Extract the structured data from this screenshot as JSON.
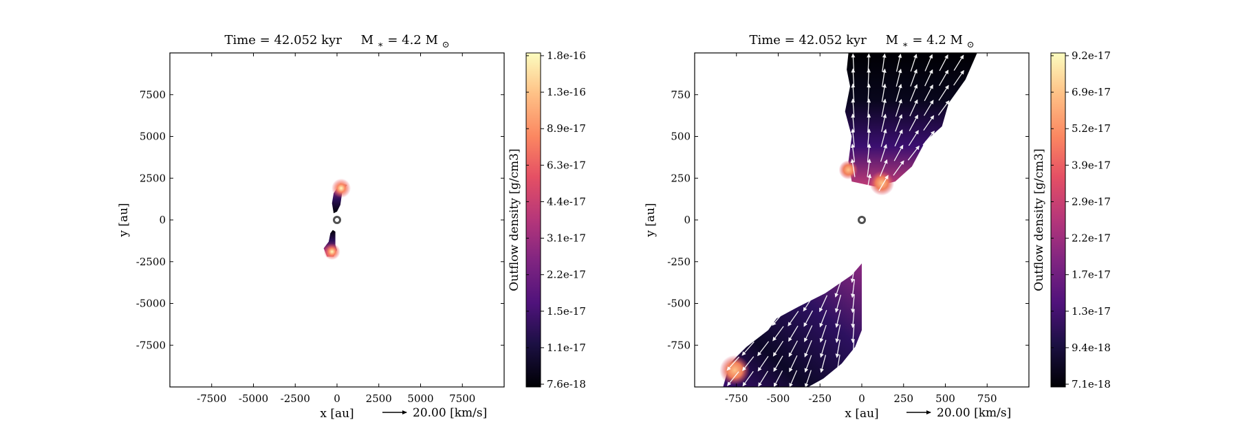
{
  "figure": {
    "panels": [
      {
        "title": "Time = 42.052 kyr    M$_*$ = 4.2 M$_\\odot$",
        "title_parts": {
          "time": "Time = 42.052 kyr",
          "mass_prefix": "M",
          "mass_sub": "∗",
          "mass_value": " = 4.2 M",
          "mass_unit_sub": "⊙"
        }
      },
      {
        "title": "Time = 42.052 kyr    M$_*$ = 4.2 M$_\\odot$",
        "title_parts": {
          "time": "Time = 42.052 kyr",
          "mass_prefix": "M",
          "mass_sub": "∗",
          "mass_value": " = 4.2 M",
          "mass_unit_sub": "⊙"
        }
      }
    ]
  },
  "chart_data": [
    {
      "type": "heatmap",
      "title": "Time = 42.052 kyr    M* = 4.2 M⊙",
      "xlabel": "x [au]",
      "ylabel": "y [au]",
      "xlim": [
        -10000,
        10000
      ],
      "ylim": [
        -10000,
        10000
      ],
      "x_ticks": [
        -7500,
        -5000,
        -2500,
        0,
        2500,
        5000,
        7500
      ],
      "x_ticklabels": [
        "-7500",
        "-5000",
        "-2500",
        "0",
        "2500",
        "5000",
        "7500"
      ],
      "y_ticks": [
        7500,
        5000,
        2500,
        0,
        -2500,
        -5000,
        -7500
      ],
      "y_ticklabels": [
        "7500",
        "5000",
        "2500",
        "0",
        "-2500",
        "-5000",
        "-7500"
      ],
      "grid": false,
      "quiver_key": {
        "label": "20.00 [km/s]"
      },
      "colorbar": {
        "label": "Outflow density [g/cm3]",
        "colormap": "magma",
        "tick_labels": [
          "1.8e-16",
          "1.3e-16",
          "8.9e-17",
          "6.3e-17",
          "4.4e-17",
          "3.1e-17",
          "2.2e-17",
          "1.5e-17",
          "1.1e-17",
          "7.6e-18"
        ],
        "range": [
          7.6e-18,
          1.8e-16
        ]
      },
      "star_marker": {
        "x": 0,
        "y": 0
      },
      "regions": [
        {
          "name": "upper-lobe",
          "polygon": [
            [
              -200,
              400
            ],
            [
              0,
              500
            ],
            [
              200,
              900
            ],
            [
              300,
              1600
            ],
            [
              600,
              2100
            ],
            [
              200,
              2200
            ],
            [
              -200,
              1600
            ],
            [
              -300,
              1000
            ]
          ]
        },
        {
          "name": "lower-lobe",
          "polygon": [
            [
              -250,
              -600
            ],
            [
              -100,
              -700
            ],
            [
              -100,
              -1500
            ],
            [
              0,
              -1800
            ],
            [
              -200,
              -2200
            ],
            [
              -600,
              -2200
            ],
            [
              -800,
              -1700
            ],
            [
              -500,
              -1300
            ],
            [
              -400,
              -800
            ]
          ]
        }
      ],
      "hotspots": [
        {
          "x": -300,
          "y": -1900,
          "density": 1.8e-16
        },
        {
          "x": 250,
          "y": 1900,
          "density": 6.3e-17
        }
      ]
    },
    {
      "type": "heatmap",
      "title": "Time = 42.052 kyr    M* = 4.2 M⊙",
      "xlabel": "x [au]",
      "ylabel": "y [au]",
      "xlim": [
        -1000,
        1000
      ],
      "ylim": [
        -1000,
        1000
      ],
      "x_ticks": [
        -750,
        -500,
        -250,
        0,
        250,
        500,
        750
      ],
      "x_ticklabels": [
        "-750",
        "-500",
        "-250",
        "0",
        "250",
        "500",
        "750"
      ],
      "y_ticks": [
        750,
        500,
        250,
        0,
        -250,
        -500,
        -750
      ],
      "y_ticklabels": [
        "750",
        "500",
        "250",
        "0",
        "-250",
        "-500",
        "-750"
      ],
      "grid": false,
      "quiver_key": {
        "label": "20.00 [km/s]"
      },
      "colorbar": {
        "label": "Outflow density [g/cm3]",
        "colormap": "magma",
        "tick_labels": [
          "9.2e-17",
          "6.9e-17",
          "5.2e-17",
          "3.9e-17",
          "2.9e-17",
          "2.2e-17",
          "1.7e-17",
          "1.3e-17",
          "9.4e-18",
          "7.1e-18"
        ],
        "range": [
          7.1e-18,
          9.2e-17
        ]
      },
      "star_marker": {
        "x": 0,
        "y": 0
      },
      "regions": [
        {
          "name": "upper-lobe",
          "polygon": [
            [
              -80,
              1000
            ],
            [
              690,
              1000
            ],
            [
              620,
              840
            ],
            [
              520,
              700
            ],
            [
              480,
              560
            ],
            [
              380,
              470
            ],
            [
              300,
              320
            ],
            [
              200,
              230
            ],
            [
              80,
              200
            ],
            [
              -60,
              230
            ],
            [
              -80,
              350
            ],
            [
              -60,
              500
            ],
            [
              -100,
              650
            ],
            [
              -70,
              800
            ],
            [
              -90,
              900
            ]
          ]
        },
        {
          "name": "lower-lobe",
          "polygon": [
            [
              -830,
              -1000
            ],
            [
              -790,
              -860
            ],
            [
              -690,
              -760
            ],
            [
              -560,
              -660
            ],
            [
              -510,
              -590
            ],
            [
              -380,
              -520
            ],
            [
              -220,
              -440
            ],
            [
              -60,
              -330
            ],
            [
              0,
              -260
            ],
            [
              0,
              -660
            ],
            [
              -40,
              -760
            ],
            [
              -120,
              -860
            ],
            [
              -230,
              -950
            ],
            [
              -320,
              -1000
            ]
          ]
        }
      ],
      "hotspots": [
        {
          "x": -760,
          "y": -900,
          "density": 5.2e-17
        },
        {
          "x": 120,
          "y": 220,
          "density": 6.9e-17
        },
        {
          "x": -80,
          "y": 300,
          "density": 5.2e-17
        }
      ]
    }
  ]
}
